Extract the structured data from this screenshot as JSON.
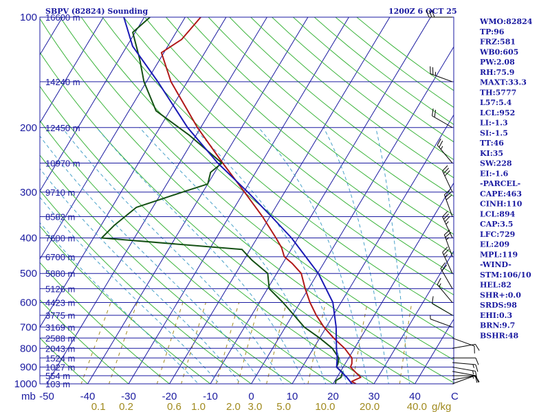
{
  "chart_data": {
    "type": "skew-t log-p sounding",
    "title": "SBPV (82824) Sounding",
    "valid_time": "1200Z  6 OCT 25",
    "y_axis": {
      "unit": "mb",
      "pressure_ticks": [
        100,
        200,
        300,
        400,
        500,
        600,
        700,
        800,
        900,
        1000
      ],
      "ylim": [
        1000,
        100
      ]
    },
    "x_axis": {
      "temperature_ticks": [
        -50,
        -40,
        -30,
        -20,
        -10,
        0,
        10,
        20,
        30,
        40
      ],
      "temperature_labels": [
        "-50",
        "-40",
        "-30",
        "-20",
        "-10",
        "0",
        "10",
        "20",
        "30",
        "40"
      ],
      "celsius_label": "C",
      "xlim": [
        -50,
        50
      ]
    },
    "mixing_ratio": {
      "unit": "g/kg",
      "labels": [
        "0.1",
        "0.2",
        "0.6",
        "1.0",
        "2.0",
        "3.0",
        "5.0",
        "10.0",
        "20.0",
        "40.0"
      ],
      "values": [
        0.1,
        0.2,
        0.6,
        1.0,
        2.0,
        3.0,
        5.0,
        10.0,
        20.0,
        40.0
      ]
    },
    "heights": [
      {
        "p": 100,
        "label": "16600 m"
      },
      {
        "p": 150,
        "label": "14240 m"
      },
      {
        "p": 200,
        "label": "12450 m"
      },
      {
        "p": 250,
        "label": "10970 m"
      },
      {
        "p": 300,
        "label": "9710 m"
      },
      {
        "p": 350,
        "label": "8582 m"
      },
      {
        "p": 400,
        "label": "7600 m"
      },
      {
        "p": 450,
        "label": "6700 m"
      },
      {
        "p": 500,
        "label": "5880 m"
      },
      {
        "p": 550,
        "label": "5126 m"
      },
      {
        "p": 600,
        "label": "4423 m"
      },
      {
        "p": 650,
        "label": "3775 m"
      },
      {
        "p": 700,
        "label": "3169 m"
      },
      {
        "p": 750,
        "label": "2588 m"
      },
      {
        "p": 800,
        "label": "2043 m"
      },
      {
        "p": 850,
        "label": "1524 m"
      },
      {
        "p": 900,
        "label": "1027 m"
      },
      {
        "p": 950,
        "label": "554 m"
      },
      {
        "p": 1000,
        "label": "103 m"
      }
    ],
    "series": [
      {
        "name": "temperature",
        "color": "#b01818",
        "points": [
          [
            1000,
            25.6
          ],
          [
            985,
            24.2
          ],
          [
            960,
            25.8
          ],
          [
            930,
            23.8
          ],
          [
            900,
            21.8
          ],
          [
            880,
            21.6
          ],
          [
            850,
            20.8
          ],
          [
            800,
            17.6
          ],
          [
            750,
            13.4
          ],
          [
            700,
            9.4
          ],
          [
            650,
            5.8
          ],
          [
            600,
            2.4
          ],
          [
            550,
            -0.8
          ],
          [
            500,
            -4.0
          ],
          [
            470,
            -7.6
          ],
          [
            450,
            -10.6
          ],
          [
            425,
            -12.6
          ],
          [
            400,
            -15.4
          ],
          [
            350,
            -21.8
          ],
          [
            300,
            -29.8
          ],
          [
            250,
            -39.4
          ],
          [
            200,
            -50.8
          ],
          [
            150,
            -64.0
          ],
          [
            125,
            -70.6
          ],
          [
            115,
            -67.6
          ],
          [
            100,
            -66.2
          ]
        ]
      },
      {
        "name": "dewpoint",
        "color": "#145014",
        "points": [
          [
            1000,
            20.6
          ],
          [
            980,
            20.2
          ],
          [
            960,
            21.0
          ],
          [
            930,
            20.6
          ],
          [
            900,
            18.4
          ],
          [
            880,
            18.2
          ],
          [
            850,
            17.6
          ],
          [
            800,
            14.6
          ],
          [
            750,
            10.0
          ],
          [
            700,
            4.6
          ],
          [
            650,
            0.4
          ],
          [
            600,
            -4.2
          ],
          [
            550,
            -9.6
          ],
          [
            500,
            -12.2
          ],
          [
            460,
            -18.0
          ],
          [
            430,
            -22.0
          ],
          [
            400,
            -58.0
          ],
          [
            370,
            -56.8
          ],
          [
            330,
            -54.0
          ],
          [
            300,
            -45.0
          ],
          [
            285,
            -40.0
          ],
          [
            265,
            -41.0
          ],
          [
            250,
            -39.6
          ],
          [
            210,
            -51.6
          ],
          [
            180,
            -63.4
          ],
          [
            150,
            -70.6
          ],
          [
            130,
            -75.0
          ],
          [
            110,
            -80.6
          ],
          [
            100,
            -78.6
          ]
        ]
      },
      {
        "name": "parcel path",
        "color": "#1a1ab4",
        "points": [
          [
            1000,
            24.6
          ],
          [
            960,
            22.4
          ],
          [
            900,
            18.4
          ],
          [
            850,
            17.2
          ],
          [
            800,
            15.6
          ],
          [
            700,
            12.4
          ],
          [
            600,
            8.0
          ],
          [
            500,
            0.2
          ],
          [
            400,
            -11.6
          ],
          [
            350,
            -19.6
          ],
          [
            300,
            -29.0
          ],
          [
            250,
            -40.6
          ],
          [
            200,
            -53.2
          ],
          [
            150,
            -67.2
          ],
          [
            120,
            -78.6
          ],
          [
            100,
            -85.0
          ]
        ]
      }
    ],
    "winds": [
      {
        "p": 1000,
        "dir": 70,
        "spd": 5
      },
      {
        "p": 975,
        "dir": 80,
        "spd": 10
      },
      {
        "p": 950,
        "dir": 90,
        "spd": 10
      },
      {
        "p": 925,
        "dir": 100,
        "spd": 15
      },
      {
        "p": 900,
        "dir": 100,
        "spd": 15
      },
      {
        "p": 875,
        "dir": 95,
        "spd": 15
      },
      {
        "p": 850,
        "dir": 90,
        "spd": 10
      },
      {
        "p": 800,
        "dir": 80,
        "spd": 10
      },
      {
        "p": 750,
        "dir": 110,
        "spd": 10
      },
      {
        "p": 700,
        "dir": 290,
        "spd": 5
      },
      {
        "p": 650,
        "dir": 300,
        "spd": 10
      },
      {
        "p": 600,
        "dir": 320,
        "spd": 15
      },
      {
        "p": 550,
        "dir": 330,
        "spd": 20
      },
      {
        "p": 500,
        "dir": 335,
        "spd": 25
      },
      {
        "p": 450,
        "dir": 340,
        "spd": 25
      },
      {
        "p": 400,
        "dir": 335,
        "spd": 35
      },
      {
        "p": 350,
        "dir": 340,
        "spd": 30
      },
      {
        "p": 300,
        "dir": 335,
        "spd": 30
      },
      {
        "p": 250,
        "dir": 320,
        "spd": 25
      },
      {
        "p": 200,
        "dir": 300,
        "spd": 20
      },
      {
        "p": 150,
        "dir": 290,
        "spd": 25
      },
      {
        "p": 100,
        "dir": 270,
        "spd": 30
      }
    ],
    "indices": [
      "WMO:82824",
      "TP:96",
      "FRZ:581",
      "WB0:605",
      "PW:2.08",
      "RH:75.9",
      "MAXT:33.3",
      "TH:5777",
      "L57:5.4",
      "LCL:952",
      "LI:-1.3",
      "SI:-1.5",
      "TT:46",
      "KI:35",
      "SW:228",
      "EI:-1.6",
      "-PARCEL-",
      "CAPE:463",
      "CINH:110",
      "LCL:894",
      "CAP:3.5",
      "LFC:729",
      "EL:209",
      "MPL:119",
      "-WIND-",
      "STM:106/10",
      "HEL:82",
      "SHR+:0.0",
      "SRDS:98",
      "EHI:0.3",
      "BRN:9.7",
      "BSHR:48"
    ]
  },
  "colors": {
    "isobar": "#1a1aa0",
    "isotherm": "#1a1aa0",
    "dry_adiabat": "#3cb43c",
    "moist_adiabat": "#46a0c8",
    "mixing_ratio": "#a08a1e",
    "frame": "#1a1aa0"
  }
}
